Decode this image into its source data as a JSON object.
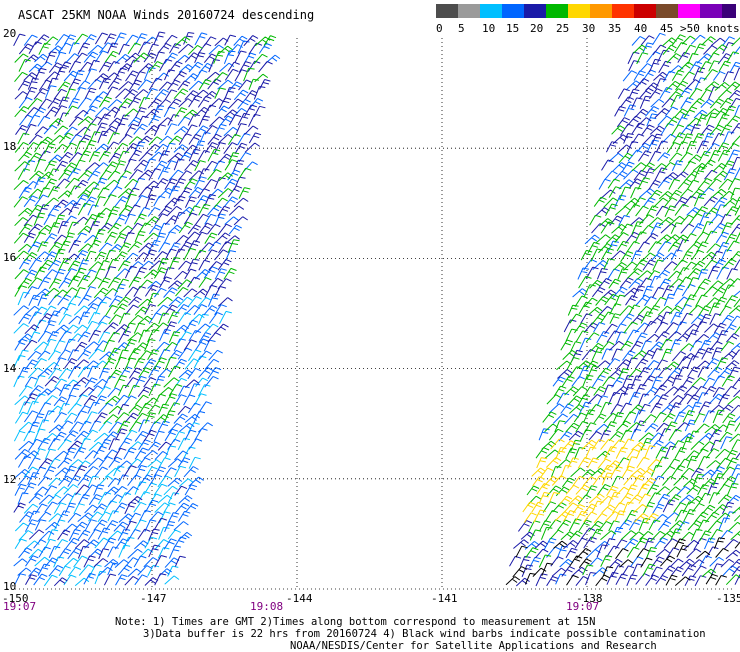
{
  "title": "ASCAT 25KM NOAA Winds 20160724 descending",
  "legend": {
    "colors": [
      "#4d4d4d",
      "#9a9a9a",
      "#00bfff",
      "#0066ff",
      "#1a1aa8",
      "#00b800",
      "#ffd700",
      "#ff9900",
      "#ff3300",
      "#cc0000",
      "#7a4a2a",
      "#ff00ff",
      "#7a00b8",
      "#3a0078"
    ],
    "ticks": [
      "0",
      "5",
      "10",
      "15",
      "20",
      "25",
      "30",
      "35",
      "40",
      "45",
      ">50 knots"
    ]
  },
  "axes": {
    "lat_labels": [
      "20",
      "18",
      "16",
      "14",
      "12",
      "10"
    ],
    "lon_labels": [
      "-150",
      "-147",
      "-144",
      "-141",
      "-138",
      "-135"
    ],
    "xlim": [
      -150,
      -135
    ],
    "ylim": [
      10,
      20
    ],
    "grid": true,
    "grid_style": "dotted"
  },
  "times": [
    "19:07",
    "19:08",
    "19:07"
  ],
  "notes": [
    "Note: 1) Times are GMT 2)Times along bottom correspond to measurement at 15N",
    "3)Data buffer is 22 hrs from 20160724 4) Black wind barbs indicate possible contamination",
    "NOAA/NESDIS/Center for Satellite Applications and Research"
  ],
  "barb_colors": {
    "calm": "#00bfff",
    "light": "#0066ff",
    "moderate": "#1a1aa8",
    "fresh": "#00b800",
    "strong": "#ffd700",
    "contaminated": "#000000"
  }
}
